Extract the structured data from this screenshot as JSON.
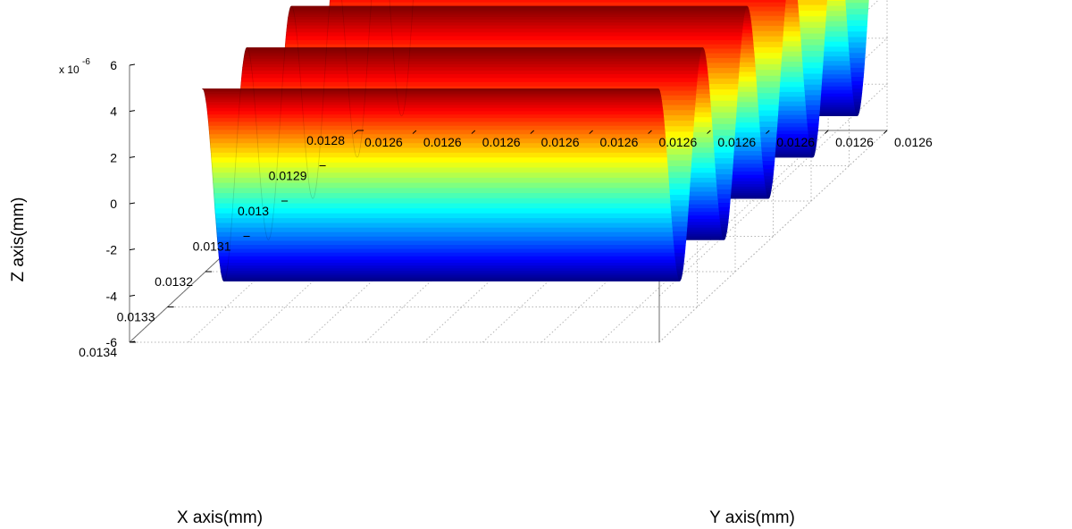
{
  "chart_data": {
    "type": "surface3d",
    "title": "",
    "xlabel": "X axis(mm)",
    "ylabel": "Y axis(mm)",
    "zlabel": "Z axis(mm)",
    "z_exponent_base": "x 10",
    "z_exponent_power": "-6",
    "x_ticks": [
      "0.0134",
      "0.0133",
      "0.0132",
      "0.0131",
      "0.013",
      "0.0129",
      "0.0128"
    ],
    "y_ticks": [
      "0.0126",
      "0.0126",
      "0.0126",
      "0.0126",
      "0.0126",
      "0.0126",
      "0.0126",
      "0.0126",
      "0.0126",
      "0.0126"
    ],
    "z_ticks": [
      "6",
      "4",
      "2",
      "0",
      "-2",
      "-4",
      "-6"
    ],
    "xlim": [
      0.0128,
      0.0134
    ],
    "zlim": [
      -6,
      6
    ],
    "z_amplitude": 4.6,
    "ridge_count": 5,
    "colormap": "jet",
    "grid": true
  }
}
